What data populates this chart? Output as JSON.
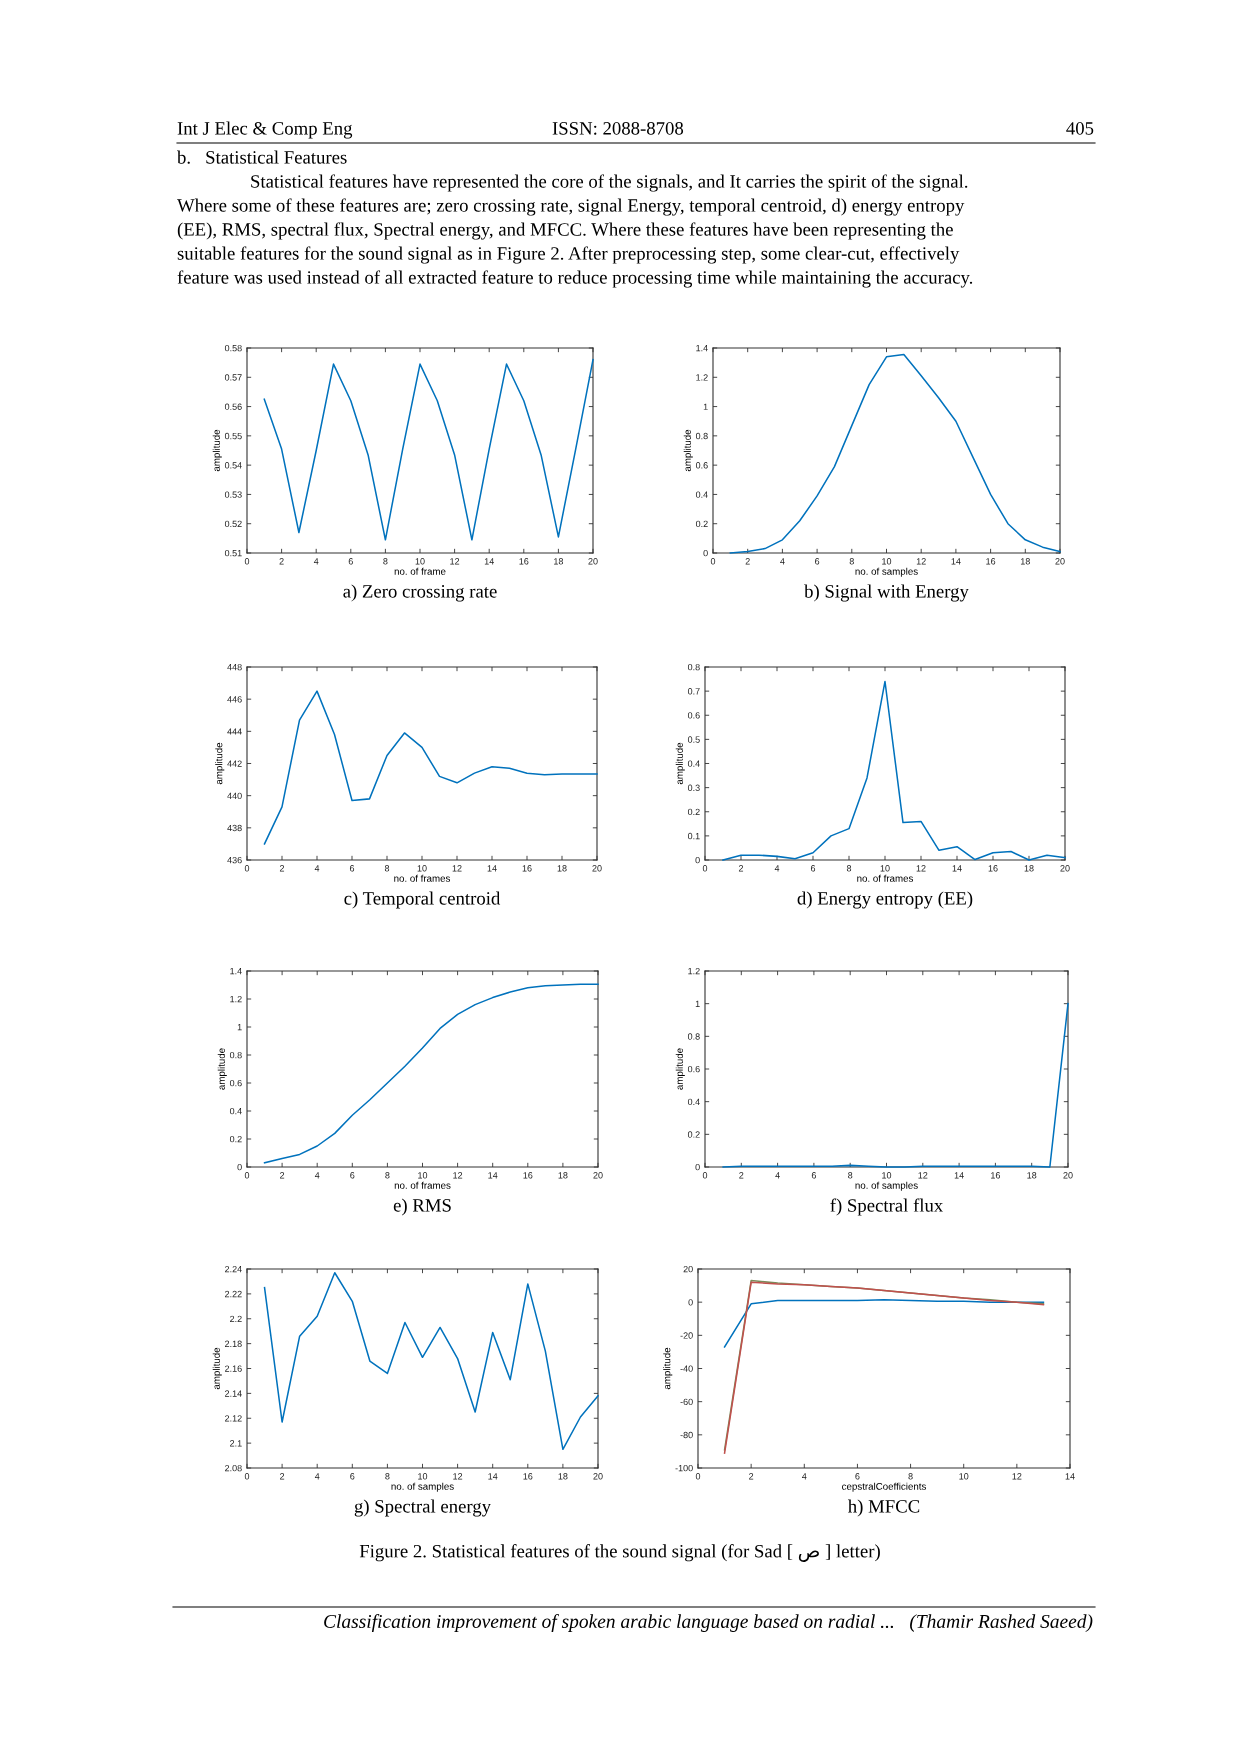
{
  "chart_data": [
    {
      "type": "other",
      "annotations": [
        "Int J Elec & Comp Eng",
        "ISSN: 2088-8708",
        "405",
        "b.   Statistical Features",
        "Statistical features have represented the core of the signals, and It carries the spirit of the signal.",
        "Where some of these features are; zero crossing rate, signal Energy, temporal centroid, d) energy entropy",
        "(EE), RMS, spectral flux, Spectral energy, and MFCC. Where these features have been representing the",
        "suitable features for the sound signal as in Figure 2. After preprocessing step, some clear-cut, effectively",
        "feature was used instead of all extracted feature to reduce processing time while maintaining the accuracy."
      ]
    },
    {
      "type": "line",
      "title": "a) Zero crossing rate",
      "xlabel": "no. of frame",
      "ylabel": "amplitude",
      "xlim": [
        0,
        20
      ],
      "xticks": [
        0,
        2,
        4,
        6,
        8,
        10,
        12,
        14,
        16,
        18,
        20
      ],
      "ylim": [
        0.51,
        0.58
      ],
      "yticks": [
        0.51,
        0.52,
        0.53,
        0.54,
        0.55,
        0.56,
        0.57,
        0.58
      ],
      "grid": false,
      "x": [
        1,
        2,
        3,
        4,
        5,
        6,
        7,
        8,
        9,
        10,
        11,
        12,
        13,
        14,
        15,
        16,
        17,
        18,
        19,
        20
      ],
      "series": [
        {
          "color": "#0072bd",
          "values": [
            0.5625,
            0.5455,
            0.517,
            0.545,
            0.5745,
            0.562,
            0.5435,
            0.5145,
            0.5455,
            0.5745,
            0.562,
            0.5435,
            0.5145,
            0.5455,
            0.5745,
            0.562,
            0.5435,
            0.5155,
            0.5455,
            0.576
          ]
        }
      ]
    },
    {
      "type": "line",
      "title": "b) Signal with Energy",
      "xlabel": "no. of samples",
      "ylabel": "amplitude",
      "xlim": [
        0,
        20
      ],
      "xticks": [
        0,
        2,
        4,
        6,
        8,
        10,
        12,
        14,
        16,
        18,
        20
      ],
      "ylim": [
        0,
        1.4
      ],
      "yticks": [
        0,
        0.2,
        0.4,
        0.6,
        0.8,
        1,
        1.2,
        1.4
      ],
      "grid": false,
      "x": [
        1,
        2,
        3,
        4,
        5,
        6,
        7,
        8,
        9,
        10,
        11,
        12,
        13,
        14,
        15,
        16,
        17,
        18,
        19,
        20
      ],
      "series": [
        {
          "color": "#0072bd",
          "values": [
            0,
            0.01,
            0.03,
            0.09,
            0.22,
            0.39,
            0.59,
            0.87,
            1.15,
            1.34,
            1.355,
            1.21,
            1.06,
            0.9,
            0.65,
            0.4,
            0.2,
            0.09,
            0.04,
            0.01
          ]
        }
      ]
    },
    {
      "type": "line",
      "title": "c) Temporal centroid",
      "xlabel": "no. of frames",
      "ylabel": "amplitude",
      "xlim": [
        0,
        20
      ],
      "xticks": [
        0,
        2,
        4,
        6,
        8,
        10,
        12,
        14,
        16,
        18,
        20
      ],
      "ylim": [
        436,
        448
      ],
      "yticks": [
        436,
        438,
        440,
        442,
        444,
        446,
        448
      ],
      "grid": false,
      "x": [
        1,
        2,
        3,
        4,
        5,
        6,
        7,
        8,
        9,
        10,
        11,
        12,
        13,
        14,
        15,
        16,
        17,
        18,
        19,
        20
      ],
      "series": [
        {
          "color": "#0072bd",
          "values": [
            437,
            439.3,
            444.7,
            446.5,
            443.8,
            439.7,
            439.8,
            442.5,
            443.9,
            443,
            441.2,
            440.8,
            441.4,
            441.8,
            441.7,
            441.4,
            441.3,
            441.35,
            441.35,
            441.35
          ]
        }
      ]
    },
    {
      "type": "line",
      "title": "d) Energy entropy (EE)",
      "xlabel": "no. of frames",
      "ylabel": "amplitude",
      "xlim": [
        0,
        20
      ],
      "xticks": [
        0,
        2,
        4,
        6,
        8,
        10,
        12,
        14,
        16,
        18,
        20
      ],
      "ylim": [
        0,
        0.8
      ],
      "yticks": [
        0,
        0.1,
        0.2,
        0.3,
        0.4,
        0.5,
        0.6,
        0.7,
        0.8
      ],
      "grid": false,
      "x": [
        1,
        2,
        3,
        4,
        5,
        6,
        7,
        8,
        9,
        10,
        11,
        12,
        13,
        14,
        15,
        16,
        17,
        18,
        19,
        20
      ],
      "series": [
        {
          "color": "#0072bd",
          "values": [
            0,
            0.02,
            0.02,
            0.015,
            0.005,
            0.03,
            0.1,
            0.13,
            0.34,
            0.74,
            0.155,
            0.16,
            0.04,
            0.055,
            0.002,
            0.03,
            0.035,
            0,
            0.02,
            0.01
          ]
        }
      ]
    },
    {
      "type": "line",
      "title": "e) RMS",
      "xlabel": "no. of frames",
      "ylabel": "amplitude",
      "xlim": [
        0,
        20
      ],
      "xticks": [
        0,
        2,
        4,
        6,
        8,
        10,
        12,
        14,
        16,
        18,
        20
      ],
      "ylim": [
        0,
        1.4
      ],
      "yticks": [
        0,
        0.2,
        0.4,
        0.6,
        0.8,
        1,
        1.2,
        1.4
      ],
      "grid": false,
      "x": [
        1,
        2,
        3,
        4,
        5,
        6,
        7,
        8,
        9,
        10,
        11,
        12,
        13,
        14,
        15,
        16,
        17,
        18,
        19,
        20
      ],
      "series": [
        {
          "color": "#0072bd",
          "values": [
            0.03,
            0.06,
            0.09,
            0.15,
            0.24,
            0.37,
            0.48,
            0.6,
            0.72,
            0.85,
            0.99,
            1.09,
            1.16,
            1.21,
            1.25,
            1.28,
            1.295,
            1.3,
            1.305,
            1.305
          ]
        }
      ]
    },
    {
      "type": "line",
      "title": "f) Spectral flux",
      "xlabel": "no. of samples",
      "ylabel": "amplitude",
      "xlim": [
        0,
        20
      ],
      "xticks": [
        0,
        2,
        4,
        6,
        8,
        10,
        12,
        14,
        16,
        18,
        20
      ],
      "ylim": [
        0,
        1.2
      ],
      "yticks": [
        0,
        0.2,
        0.4,
        0.6,
        0.8,
        1,
        1.2
      ],
      "grid": false,
      "x": [
        1,
        2,
        3,
        4,
        5,
        6,
        7,
        8,
        9,
        10,
        11,
        12,
        13,
        14,
        15,
        16,
        17,
        18,
        19,
        20
      ],
      "series": [
        {
          "color": "#0072bd",
          "values": [
            0,
            0.005,
            0.005,
            0.005,
            0.005,
            0.005,
            0.005,
            0.01,
            0.005,
            0,
            0,
            0.005,
            0.005,
            0.005,
            0.005,
            0.005,
            0.005,
            0.005,
            0,
            1.0
          ]
        }
      ]
    },
    {
      "type": "line",
      "title": "g) Spectral energy",
      "xlabel": "no. of samples",
      "ylabel": "amplitude",
      "xlim": [
        0,
        20
      ],
      "xticks": [
        0,
        2,
        4,
        6,
        8,
        10,
        12,
        14,
        16,
        18,
        20
      ],
      "ylim": [
        2.08,
        2.24
      ],
      "yticks": [
        2.08,
        2.1,
        2.12,
        2.14,
        2.16,
        2.18,
        2.2,
        2.22,
        2.24
      ],
      "grid": false,
      "x": [
        1,
        2,
        3,
        4,
        5,
        6,
        7,
        8,
        9,
        10,
        11,
        12,
        13,
        14,
        15,
        16,
        17,
        18,
        19,
        20
      ],
      "series": [
        {
          "color": "#0072bd",
          "values": [
            2.225,
            2.117,
            2.186,
            2.202,
            2.237,
            2.214,
            2.166,
            2.156,
            2.197,
            2.169,
            2.193,
            2.168,
            2.125,
            2.189,
            2.151,
            2.228,
            2.174,
            2.095,
            2.121,
            2.138
          ]
        }
      ]
    },
    {
      "type": "line",
      "title": "h) MFCC",
      "xlabel": "cepstralCoefficients",
      "ylabel": "amplitude",
      "xlim": [
        0,
        14
      ],
      "xticks": [
        0,
        2,
        4,
        6,
        8,
        10,
        12,
        14
      ],
      "ylim": [
        -100,
        20
      ],
      "yticks": [
        -100,
        -80,
        -60,
        -40,
        -20,
        0,
        20
      ],
      "grid": false,
      "x": [
        1,
        2,
        3,
        4,
        5,
        6,
        7,
        8,
        9,
        10,
        11,
        12,
        13
      ],
      "series": [
        {
          "color": "#0072bd",
          "values": [
            -27,
            -1,
            1,
            1,
            1,
            1,
            1.5,
            1,
            0.5,
            0.5,
            0,
            0,
            0
          ]
        },
        {
          "color": "#7a8c5a",
          "values": [
            -89,
            13,
            11.5,
            10.5,
            9.5,
            8.5,
            7,
            5.5,
            4,
            2.5,
            1.5,
            0,
            -1
          ]
        },
        {
          "color": "#c0504d",
          "values": [
            -91,
            12,
            11,
            10.5,
            9.5,
            8.5,
            7,
            5.5,
            4,
            2.5,
            1,
            0,
            -1.5
          ]
        }
      ]
    },
    {
      "type": "other",
      "annotations": [
        "Figure 2. Statistical features of the sound signal (for Sad [ ص ] letter)",
        "Classification improvement of spoken arabic language based on radial ...   (Thamir Rashed Saeed)"
      ]
    }
  ]
}
